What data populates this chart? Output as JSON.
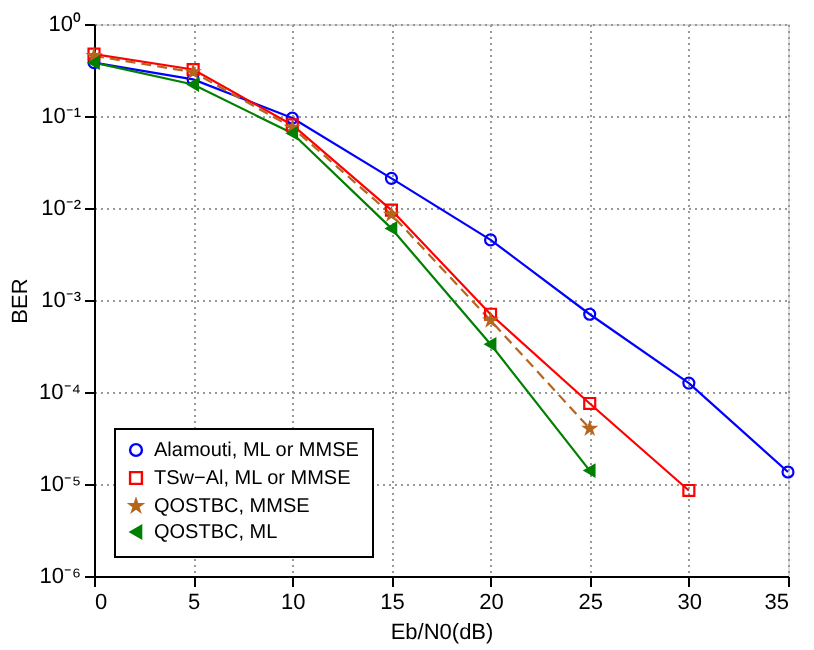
{
  "chart_data": {
    "type": "line",
    "xlabel": "Eb/N0(dB)",
    "ylabel": "BER",
    "x": [
      0,
      5,
      10,
      15,
      20,
      25,
      30,
      35
    ],
    "series": [
      {
        "name": "Alamouti, ML or MMSE",
        "color": "#0000ff",
        "marker": "circle",
        "line_style": "solid",
        "values": [
          0.38,
          0.25,
          0.095,
          0.021,
          0.0045,
          0.0007,
          0.000125,
          1.35e-05
        ]
      },
      {
        "name": "TSw−Al, ML or MMSE",
        "color": "#ff0000",
        "marker": "square",
        "line_style": "solid",
        "values": [
          0.47,
          0.32,
          0.08,
          0.0095,
          0.0007,
          7.5e-05,
          8.5e-06,
          null
        ]
      },
      {
        "name": "QOSTBC, MMSE",
        "color": "#b5651d",
        "marker": "star",
        "line_style": "dashed",
        "values": [
          0.45,
          0.3,
          0.075,
          0.0085,
          0.0006,
          4e-05,
          null,
          null
        ]
      },
      {
        "name": "QOSTBC, ML",
        "color": "#008000",
        "marker": "triangle",
        "line_style": "solid",
        "values": [
          0.38,
          0.22,
          0.065,
          0.006,
          0.00033,
          1.4e-05,
          null,
          null
        ]
      }
    ],
    "log": "y",
    "xlim": [
      0,
      35
    ],
    "xticks": [
      0,
      5,
      10,
      15,
      20,
      25,
      30,
      35
    ],
    "ylim": [
      1e-06,
      1
    ],
    "yticks": [
      {
        "value": 1e-06,
        "label": "10⁻⁶"
      },
      {
        "value": 1e-05,
        "label": "10⁻⁵"
      },
      {
        "value": 0.0001,
        "label": "10⁻⁴"
      },
      {
        "value": 0.001,
        "label": "10⁻³"
      },
      {
        "value": 0.01,
        "label": "10⁻²"
      },
      {
        "value": 0.1,
        "label": "10⁻¹"
      },
      {
        "value": 1,
        "label": "10⁰"
      }
    ],
    "grid": true,
    "legend": "bottom left"
  }
}
